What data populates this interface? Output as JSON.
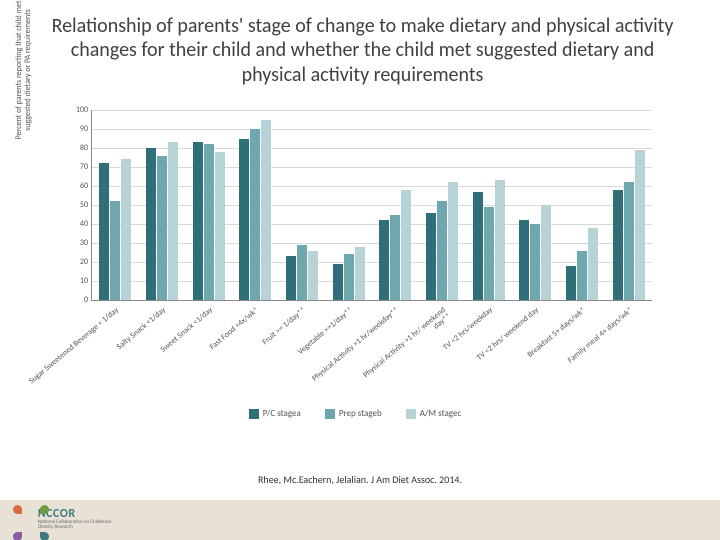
{
  "title": "Relationship of parents' stage of change to make dietary and physical activity changes for their child and whether the child met suggested dietary and physical activity requirements",
  "citation": "Rhee, Mc.Eachern, Jelalian. J Am Diet Assoc. 2014.",
  "ylabel": "Percent of parents reporting that child met suggested dietary or PA requirements",
  "logo": {
    "main": "NCCOR",
    "sub": "National Collaborative on Childhood Obesity Research"
  },
  "chart": {
    "type": "bar",
    "ylim": [
      0,
      100
    ],
    "ytick_step": 10,
    "grid_color": "#d9d9d9",
    "axis_color": "#888888",
    "background_color": "#ffffff",
    "label_fontsize": 8,
    "series": [
      {
        "name": "P/C stagea",
        "color": "#2f6f78"
      },
      {
        "name": "Prep stageb",
        "color": "#6ea8ae"
      },
      {
        "name": "A/M stagec",
        "color": "#b8d3d6"
      }
    ],
    "categories": [
      "Sugar Sweetened Beverage < 1/day",
      "Salty Snack <1/day",
      "Sweet Snack <1/day",
      "Fast Food <4x/wk*",
      "Fruit >= 1/day**",
      "Vegetable >=1/day**",
      "Physical Activity >1 hr/weekday**",
      "Physical Activity >1 hr/ weekend day**",
      "TV <2 hrs/weekday",
      "TV <2 hrs/ weekend day",
      "Breakfast 5+ days/wk*",
      "Family meal 4+ days/wk*"
    ],
    "values": [
      [
        72,
        52,
        74
      ],
      [
        80,
        76,
        83
      ],
      [
        83,
        82,
        78
      ],
      [
        85,
        90,
        95
      ],
      [
        23,
        29,
        26
      ],
      [
        19,
        24,
        28
      ],
      [
        42,
        45,
        58
      ],
      [
        46,
        52,
        62
      ],
      [
        57,
        49,
        63
      ],
      [
        42,
        40,
        50
      ],
      [
        18,
        26,
        38
      ],
      [
        58,
        62,
        79
      ]
    ]
  },
  "logo_colors": [
    "#d96b3a",
    "#6e9c3f",
    "#3f7a80",
    "#8a5aa3"
  ]
}
